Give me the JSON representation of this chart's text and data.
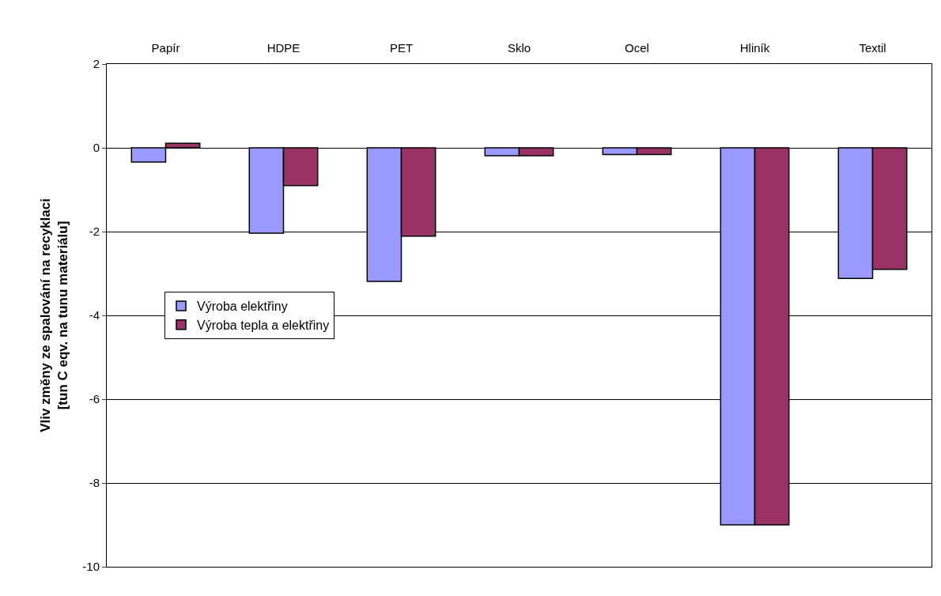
{
  "chart_data": {
    "type": "bar",
    "ylabel": "Vliv změny ze spalování na recyklaci\n[tun C eqv. na tunu materiálu]",
    "categories": [
      "Papír",
      "HDPE",
      "PET",
      "Sklo",
      "Ocel",
      "Hliník",
      "Textil"
    ],
    "series": [
      {
        "name": "Výroba elektřiny",
        "color": "#9999ff",
        "values": [
          -0.34,
          -2.04,
          -3.19,
          -0.19,
          -0.16,
          -9,
          -3.12
        ]
      },
      {
        "name": "Výroba tepla a elektřiny",
        "color": "#993366",
        "values": [
          0.11,
          -0.9,
          -2.11,
          -0.19,
          -0.16,
          -9,
          -2.9
        ]
      }
    ],
    "ylim": [
      -10,
      2
    ],
    "yticks": [
      -10,
      -8,
      -6,
      -4,
      -2,
      0,
      2
    ],
    "grid": "y",
    "legend": "left"
  }
}
